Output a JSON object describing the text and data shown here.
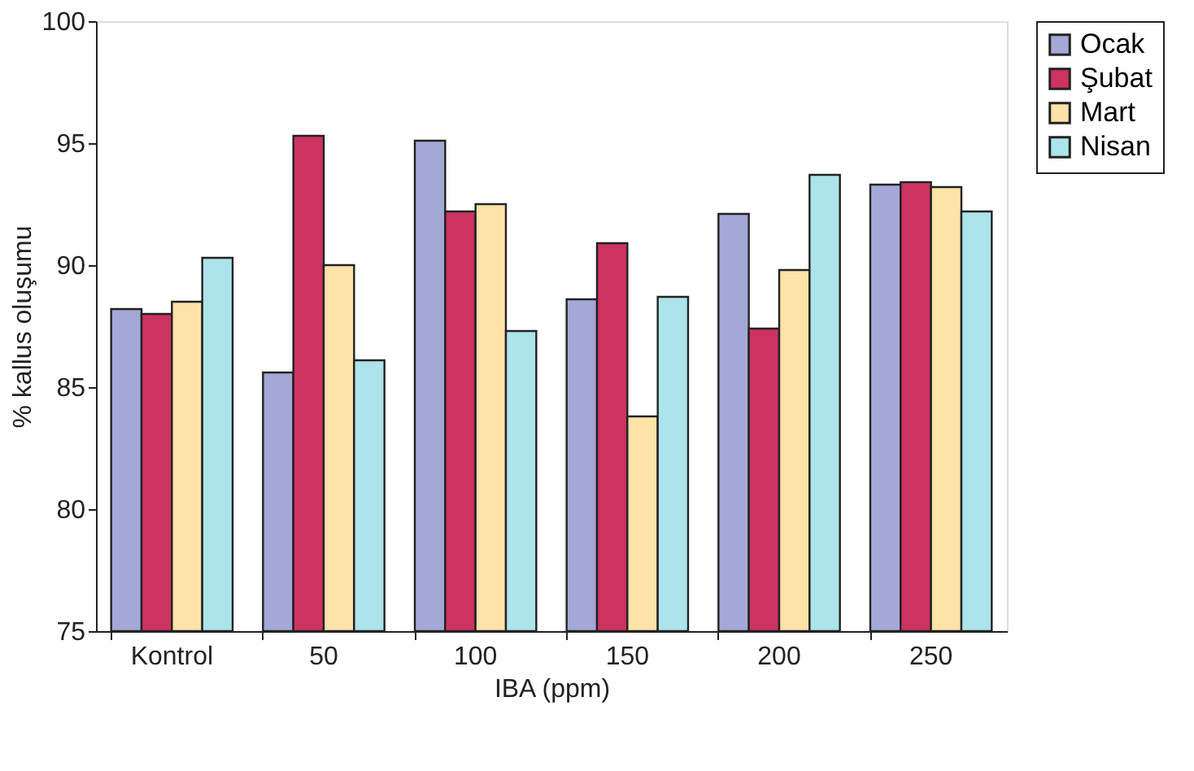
{
  "chart_data": {
    "type": "bar",
    "xlabel": "IBA (ppm)",
    "ylabel": "% kallus oluşumu",
    "categories": [
      "Kontrol",
      "50",
      "100",
      "150",
      "200",
      "250"
    ],
    "series": [
      {
        "name": "Ocak",
        "color": "#a3a8d6",
        "values": [
          88.2,
          85.6,
          95.1,
          88.6,
          92.1,
          93.3
        ]
      },
      {
        "name": "Şubat",
        "color": "#cc3360",
        "values": [
          88.0,
          95.3,
          92.2,
          90.9,
          87.4,
          93.4
        ]
      },
      {
        "name": "Mart",
        "color": "#fde3a8",
        "values": [
          88.5,
          90.0,
          92.5,
          83.8,
          89.8,
          93.2
        ]
      },
      {
        "name": "Nisan",
        "color": "#ade3ea",
        "values": [
          90.3,
          86.1,
          87.3,
          88.7,
          93.7,
          92.2
        ]
      }
    ],
    "ylim": [
      75,
      100
    ],
    "yticks": [
      75,
      80,
      85,
      90,
      95,
      100
    ],
    "grid": false,
    "legend": "top right"
  }
}
